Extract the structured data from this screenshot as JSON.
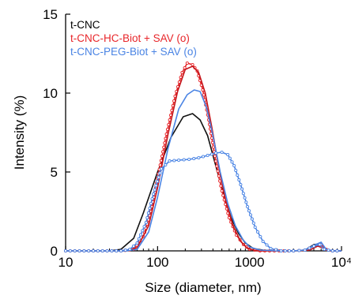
{
  "chart_data": {
    "type": "line",
    "xlabel": "Size (diameter, nm)",
    "ylabel": "Intensity (%)",
    "xscale": "log",
    "xlim": [
      10,
      10000
    ],
    "ylim": [
      0,
      15
    ],
    "xticks": [
      10,
      100,
      1000,
      10000
    ],
    "xtick_labels": [
      "10",
      "100",
      "1000",
      "10⁴"
    ],
    "yticks": [
      0,
      5,
      10,
      15
    ],
    "ytick_labels": [
      "0",
      "5",
      "10",
      "15"
    ],
    "grid": false,
    "legend_position": "top-left",
    "series": [
      {
        "name": "t-CNC",
        "color": "#111111",
        "marker": "none",
        "points": [
          [
            10,
            0
          ],
          [
            30,
            0
          ],
          [
            40,
            0.1
          ],
          [
            55,
            0.8
          ],
          [
            70,
            2.4
          ],
          [
            100,
            5.0
          ],
          [
            140,
            7.2
          ],
          [
            190,
            8.5
          ],
          [
            240,
            8.7
          ],
          [
            290,
            8.3
          ],
          [
            350,
            7.3
          ],
          [
            420,
            5.6
          ],
          [
            520,
            3.6
          ],
          [
            630,
            2.1
          ],
          [
            760,
            1.1
          ],
          [
            900,
            0.5
          ],
          [
            1100,
            0.15
          ],
          [
            1400,
            0.05
          ],
          [
            2000,
            0
          ],
          [
            3000,
            0
          ],
          [
            4000,
            0.05
          ],
          [
            5000,
            0.4
          ],
          [
            5800,
            0.45
          ],
          [
            6500,
            0.1
          ],
          [
            8000,
            0
          ],
          [
            10000,
            0
          ]
        ]
      },
      {
        "name": "t-CNC-HC-Biot + SAV (o)",
        "color": "#e8262a",
        "marker": "circle",
        "points": [
          [
            10,
            0
          ],
          [
            40,
            0
          ],
          [
            55,
            0.1
          ],
          [
            70,
            0.9
          ],
          [
            85,
            2.5
          ],
          [
            100,
            4.6
          ],
          [
            125,
            7.4
          ],
          [
            155,
            9.8
          ],
          [
            185,
            11.3
          ],
          [
            210,
            11.9
          ],
          [
            240,
            11.8
          ],
          [
            270,
            11.4
          ],
          [
            310,
            10.2
          ],
          [
            360,
            8.3
          ],
          [
            420,
            6.0
          ],
          [
            500,
            3.8
          ],
          [
            600,
            2.1
          ],
          [
            720,
            1.0
          ],
          [
            860,
            0.4
          ],
          [
            1000,
            0.1
          ],
          [
            1300,
            0
          ],
          [
            3000,
            0
          ],
          [
            4000,
            0.05
          ],
          [
            5000,
            0.3
          ],
          [
            6000,
            0.4
          ],
          [
            6800,
            0.1
          ],
          [
            8000,
            0
          ],
          [
            10000,
            0
          ]
        ]
      },
      {
        "name": "t-CNC-HC-Biot + SAV (o) #2",
        "color": "#c4161c",
        "marker": "none",
        "points": [
          [
            10,
            0
          ],
          [
            45,
            0
          ],
          [
            60,
            0.2
          ],
          [
            80,
            1.6
          ],
          [
            100,
            4.0
          ],
          [
            130,
            7.4
          ],
          [
            165,
            10.1
          ],
          [
            200,
            11.5
          ],
          [
            240,
            11.7
          ],
          [
            280,
            11.3
          ],
          [
            330,
            10.0
          ],
          [
            390,
            7.8
          ],
          [
            460,
            5.4
          ],
          [
            550,
            3.2
          ],
          [
            660,
            1.6
          ],
          [
            800,
            0.6
          ],
          [
            950,
            0.15
          ],
          [
            1200,
            0
          ],
          [
            3000,
            0
          ],
          [
            4500,
            0.05
          ],
          [
            5500,
            0.3
          ],
          [
            6200,
            0.2
          ],
          [
            7500,
            0
          ],
          [
            10000,
            0
          ]
        ]
      },
      {
        "name": "t-CNC-PEG-Biot + SAV (o)",
        "color": "#4a84e4",
        "marker": "none",
        "points": [
          [
            10,
            0
          ],
          [
            45,
            0
          ],
          [
            60,
            0.1
          ],
          [
            80,
            1.2
          ],
          [
            100,
            3.4
          ],
          [
            130,
            6.5
          ],
          [
            170,
            9.0
          ],
          [
            210,
            9.9
          ],
          [
            250,
            10.2
          ],
          [
            290,
            10.1
          ],
          [
            340,
            9.1
          ],
          [
            400,
            7.3
          ],
          [
            480,
            5.0
          ],
          [
            580,
            3.0
          ],
          [
            700,
            1.6
          ],
          [
            850,
            0.7
          ],
          [
            1000,
            0.25
          ],
          [
            1300,
            0.05
          ],
          [
            2000,
            0
          ],
          [
            3000,
            0
          ],
          [
            4000,
            0.05
          ],
          [
            5000,
            0.35
          ],
          [
            6000,
            0.55
          ],
          [
            6800,
            0.1
          ],
          [
            8000,
            0
          ],
          [
            10000,
            0
          ]
        ]
      },
      {
        "name": "t-CNC-PEG-Biot + SAV (o) #2",
        "color": "#4a84e4",
        "marker": "circle",
        "points": [
          [
            10,
            0
          ],
          [
            40,
            0
          ],
          [
            50,
            0.1
          ],
          [
            60,
            0.5
          ],
          [
            75,
            1.8
          ],
          [
            90,
            3.6
          ],
          [
            110,
            5.2
          ],
          [
            135,
            5.7
          ],
          [
            170,
            5.75
          ],
          [
            220,
            5.8
          ],
          [
            280,
            5.9
          ],
          [
            350,
            6.05
          ],
          [
            430,
            6.2
          ],
          [
            500,
            6.25
          ],
          [
            580,
            6.1
          ],
          [
            680,
            5.4
          ],
          [
            800,
            4.2
          ],
          [
            950,
            2.8
          ],
          [
            1150,
            1.5
          ],
          [
            1400,
            0.6
          ],
          [
            1700,
            0.15
          ],
          [
            2200,
            0
          ],
          [
            3000,
            0
          ],
          [
            4000,
            0.05
          ],
          [
            5000,
            0.3
          ],
          [
            5800,
            0.4
          ],
          [
            6500,
            0.1
          ],
          [
            8000,
            0
          ],
          [
            10000,
            0
          ]
        ]
      }
    ],
    "legend": [
      {
        "label": "t-CNC",
        "color": "#000000"
      },
      {
        "label": "t-CNC-HC-Biot + SAV (o)",
        "color": "#e8262a"
      },
      {
        "label": "t-CNC-PEG-Biot + SAV (o)",
        "color": "#4a84e4"
      }
    ]
  }
}
